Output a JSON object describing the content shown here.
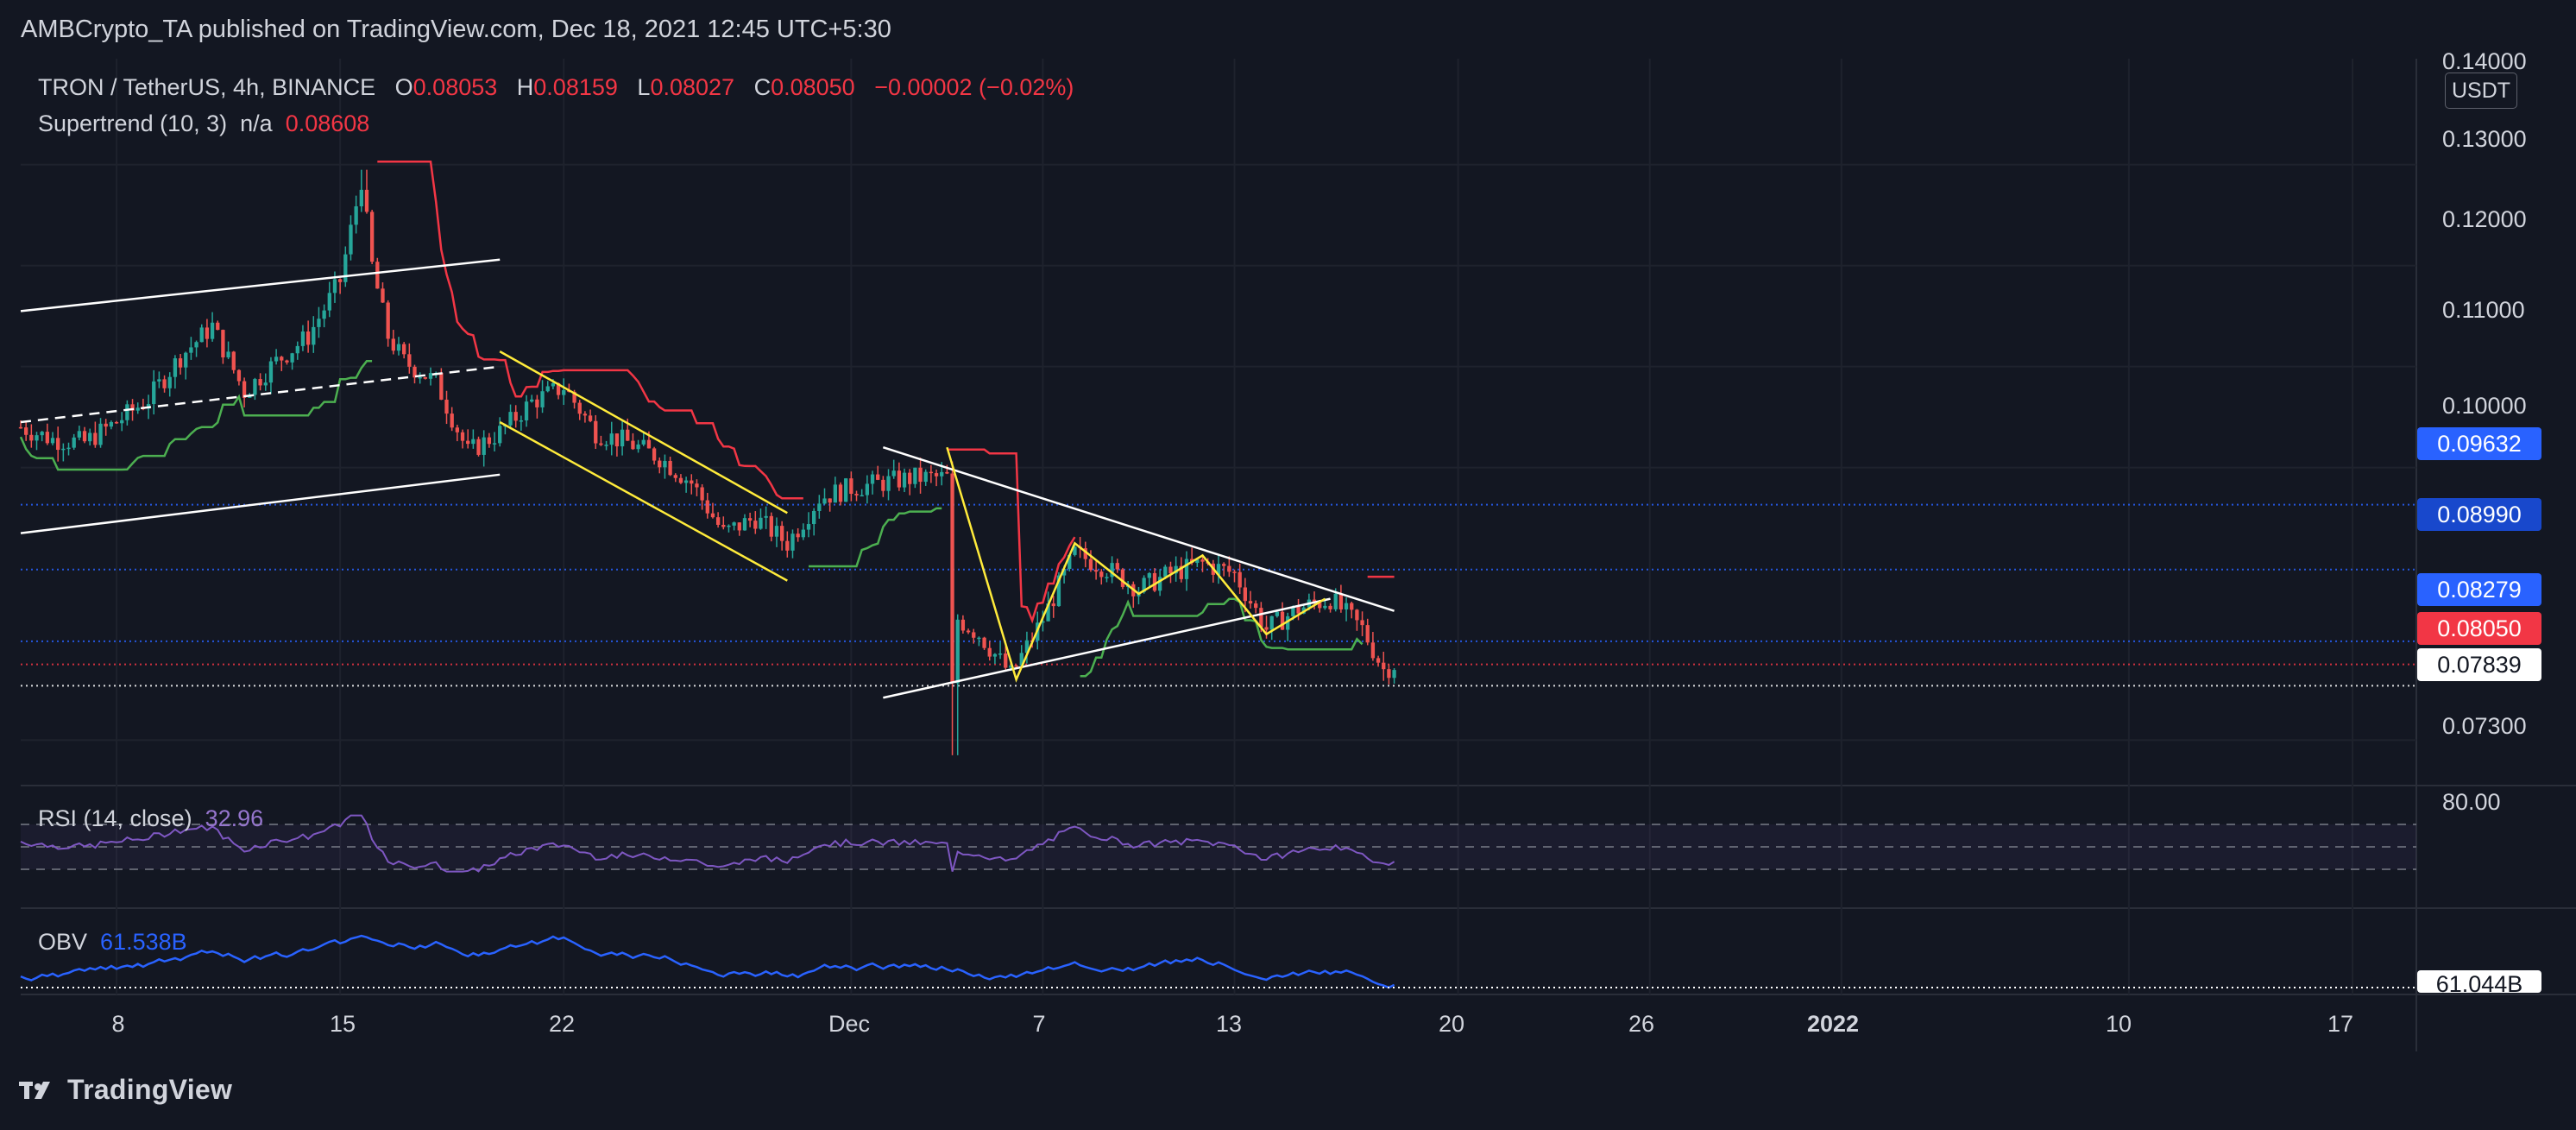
{
  "publisher": "AMBCrypto_TA published on TradingView.com, Dec 18, 2021 12:45 UTC+5:30",
  "legend": {
    "symbol": "TRON / TetherUS, 4h, BINANCE",
    "o_label": "O",
    "o": "0.08053",
    "h_label": "H",
    "h": "0.08159",
    "l_label": "L",
    "l": "0.08027",
    "c_label": "C",
    "c": "0.08050",
    "change": "−0.00002 (−0.02%)",
    "supertrend_label": "Supertrend (10, 3)",
    "supertrend_na": "n/a",
    "supertrend_value": "0.08608",
    "rsi_label": "RSI (14, close)",
    "rsi_value": "32.96",
    "obv_label": "OBV",
    "obv_value": "61.538B"
  },
  "price_axis": {
    "unit": "USDT",
    "ticks": [
      "0.14000",
      "0.13000",
      "0.12000",
      "0.11000",
      "0.10000",
      "0.07300"
    ],
    "rsi_tick": "80.00",
    "tags": [
      {
        "text": "0.09632",
        "bg": "#2962ff",
        "fg": "#ffffff"
      },
      {
        "text": "0.08990",
        "bg": "#1848cc",
        "fg": "#ffffff"
      },
      {
        "text": "0.08279",
        "bg": "#2962ff",
        "fg": "#ffffff"
      },
      {
        "text": "0.08050",
        "bg": "#f23645",
        "fg": "#ffffff"
      },
      {
        "text": "0.07839",
        "bg": "#ffffff",
        "fg": "#131722"
      },
      {
        "text": "61.044B",
        "bg": "#ffffff",
        "fg": "#131722"
      }
    ]
  },
  "time_axis": [
    "8",
    "15",
    "22",
    "Dec",
    "7",
    "13",
    "20",
    "26",
    "2022",
    "10",
    "17"
  ],
  "branding": "TradingView",
  "colors": {
    "background": "#131722",
    "up": "#26a69a",
    "down": "#ef5350",
    "supertrend_up": "#4caf50",
    "supertrend_down": "#f23645",
    "rsi": "#7e57c2",
    "obv": "#2962ff"
  },
  "chart_data": {
    "type": "candlestick",
    "title": "TRON / TetherUS, 4h, BINANCE",
    "x_range": [
      "2021-11-05",
      "2022-01-19"
    ],
    "y_range": [
      0.0685,
      0.1405
    ],
    "ylabel": "USDT",
    "close_path": [
      {
        "t": "2021-11-05",
        "p": 0.104
      },
      {
        "t": "2021-11-06",
        "p": 0.1028
      },
      {
        "t": "2021-11-07",
        "p": 0.1025
      },
      {
        "t": "2021-11-08",
        "p": 0.1045
      },
      {
        "t": "2021-11-09",
        "p": 0.1068
      },
      {
        "t": "2021-11-10",
        "p": 0.111
      },
      {
        "t": "2021-11-11",
        "p": 0.114
      },
      {
        "t": "2021-11-12",
        "p": 0.1075
      },
      {
        "t": "2021-11-13",
        "p": 0.1105
      },
      {
        "t": "2021-11-14",
        "p": 0.113
      },
      {
        "t": "2021-11-15",
        "p": 0.1185
      },
      {
        "t": "2021-11-15T16:00",
        "p": 0.1285
      },
      {
        "t": "2021-11-16",
        "p": 0.12
      },
      {
        "t": "2021-11-16T12:00",
        "p": 0.113
      },
      {
        "t": "2021-11-17",
        "p": 0.1105
      },
      {
        "t": "2021-11-18",
        "p": 0.1085
      },
      {
        "t": "2021-11-19",
        "p": 0.1015
      },
      {
        "t": "2021-11-20",
        "p": 0.1035
      },
      {
        "t": "2021-11-21",
        "p": 0.1065
      },
      {
        "t": "2021-11-22",
        "p": 0.108
      },
      {
        "t": "2021-11-23",
        "p": 0.1035
      },
      {
        "t": "2021-11-24",
        "p": 0.1025
      },
      {
        "t": "2021-11-25",
        "p": 0.101
      },
      {
        "t": "2021-11-26",
        "p": 0.0985
      },
      {
        "t": "2021-11-27",
        "p": 0.0935
      },
      {
        "t": "2021-11-28",
        "p": 0.095
      },
      {
        "t": "2021-11-29",
        "p": 0.0925
      },
      {
        "t": "2021-11-30",
        "p": 0.097
      },
      {
        "t": "2021-12-01",
        "p": 0.098
      },
      {
        "t": "2021-12-02",
        "p": 0.0985
      },
      {
        "t": "2021-12-03",
        "p": 0.099
      },
      {
        "t": "2021-12-04",
        "p": 0.099
      },
      {
        "t": "2021-12-04T04:00",
        "p": 0.078
      },
      {
        "t": "2021-12-04T08:00",
        "p": 0.085
      },
      {
        "t": "2021-12-05",
        "p": 0.0835
      },
      {
        "t": "2021-12-06",
        "p": 0.0795
      },
      {
        "t": "2021-12-07",
        "p": 0.085
      },
      {
        "t": "2021-12-08",
        "p": 0.0915
      },
      {
        "t": "2021-12-09",
        "p": 0.09
      },
      {
        "t": "2021-12-10",
        "p": 0.088
      },
      {
        "t": "2021-12-11",
        "p": 0.0895
      },
      {
        "t": "2021-12-12",
        "p": 0.0905
      },
      {
        "t": "2021-12-13",
        "p": 0.0895
      },
      {
        "t": "2021-12-14",
        "p": 0.084
      },
      {
        "t": "2021-12-15",
        "p": 0.086
      },
      {
        "t": "2021-12-16",
        "p": 0.087
      },
      {
        "t": "2021-12-17",
        "p": 0.084
      },
      {
        "t": "2021-12-17T16:00",
        "p": 0.08
      },
      {
        "t": "2021-12-18",
        "p": 0.0805
      }
    ],
    "horizontal_levels": [
      {
        "value": 0.09632,
        "style": "dotted",
        "color": "#2962ff"
      },
      {
        "value": 0.0899,
        "style": "dotted",
        "color": "#2962ff"
      },
      {
        "value": 0.08279,
        "style": "dotted",
        "color": "#2962ff"
      },
      {
        "value": 0.0805,
        "style": "dotted",
        "color": "#f23645"
      },
      {
        "value": 0.07839,
        "style": "dotted",
        "color": "#ffffff"
      }
    ],
    "trendlines": [
      {
        "color": "#ffffff",
        "style": "solid",
        "from": {
          "t": "2021-11-05",
          "p": 0.1155
        },
        "to": {
          "t": "2021-11-20",
          "p": 0.1206
        }
      },
      {
        "color": "#ffffff",
        "style": "solid",
        "from": {
          "t": "2021-11-05",
          "p": 0.0935
        },
        "to": {
          "t": "2021-11-20",
          "p": 0.0993
        }
      },
      {
        "color": "#ffffff",
        "style": "dashed",
        "from": {
          "t": "2021-11-05",
          "p": 0.1045
        },
        "to": {
          "t": "2021-11-20",
          "p": 0.11
        }
      },
      {
        "color": "#ffeb3b",
        "style": "solid",
        "from": {
          "t": "2021-11-20",
          "p": 0.1115
        },
        "to": {
          "t": "2021-11-29",
          "p": 0.0955
        }
      },
      {
        "color": "#ffeb3b",
        "style": "solid",
        "from": {
          "t": "2021-11-20",
          "p": 0.1045
        },
        "to": {
          "t": "2021-11-29",
          "p": 0.0888
        }
      },
      {
        "color": "#ffffff",
        "style": "solid",
        "from": {
          "t": "2021-12-02",
          "p": 0.102
        },
        "to": {
          "t": "2021-12-18",
          "p": 0.0858
        }
      },
      {
        "color": "#ffffff",
        "style": "solid",
        "from": {
          "t": "2021-12-02",
          "p": 0.0772
        },
        "to": {
          "t": "2021-12-16",
          "p": 0.087
        }
      }
    ],
    "rsi": {
      "label": "RSI (14, close)",
      "last": 32.96,
      "levels": [
        70,
        50,
        30
      ]
    },
    "obv": {
      "label": "OBV",
      "last": "61.538B",
      "marked": "61.044B"
    }
  }
}
